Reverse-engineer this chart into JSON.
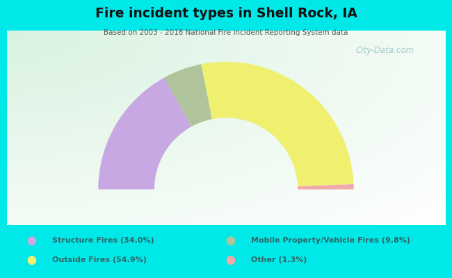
{
  "title": "Fire incident types in Shell Rock, IA",
  "subtitle": "Based on 2003 - 2018 National Fire Incident Reporting System data",
  "categories": [
    "Structure Fires (34.0%)",
    "Mobile Property/Vehicle Fires (9.8%)",
    "Outside Fires (54.9%)",
    "Other (1.3%)"
  ],
  "values": [
    34.0,
    9.8,
    54.9,
    1.3
  ],
  "colors": [
    "#c8a8e2",
    "#afc49a",
    "#f0f070",
    "#f0a8aa"
  ],
  "legend_colors": [
    "#c8a8e2",
    "#afc49a",
    "#f0f070",
    "#f0a8aa"
  ],
  "bg_color": "#00e8e8",
  "watermark": "City-Data.com",
  "title_color": "#111111",
  "subtitle_color": "#555555",
  "legend_text_color": "#336666"
}
